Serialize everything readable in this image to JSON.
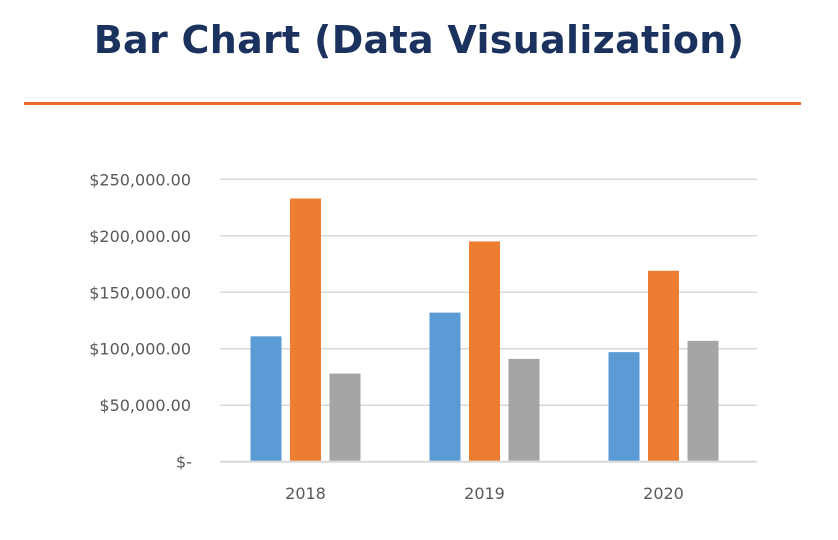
{
  "title": "Bar Chart (Data Visualization)",
  "colors": {
    "title": "#1b325e",
    "rule": "#e8692c",
    "grid": "#d9d9d9"
  },
  "chart_data": {
    "type": "bar",
    "title": "",
    "xlabel": "",
    "ylabel": "",
    "categories": [
      "2018",
      "2019",
      "2020"
    ],
    "series": [
      {
        "color": "#5b9bd5",
        "values": [
          111000,
          132000,
          97000
        ]
      },
      {
        "color": "#ed7d31",
        "values": [
          233000,
          195000,
          169000
        ]
      },
      {
        "color": "#a5a5a5",
        "values": [
          78000,
          91000,
          107000
        ]
      }
    ],
    "ylim": [
      0,
      250000
    ],
    "yticks": [
      0,
      50000,
      100000,
      150000,
      200000,
      250000
    ],
    "ytick_labels": [
      "$-",
      "$50,000.00",
      "$100,000.00",
      "$150,000.00",
      "$200,000.00",
      "$250,000.00"
    ],
    "grid": true,
    "legend": "none"
  }
}
